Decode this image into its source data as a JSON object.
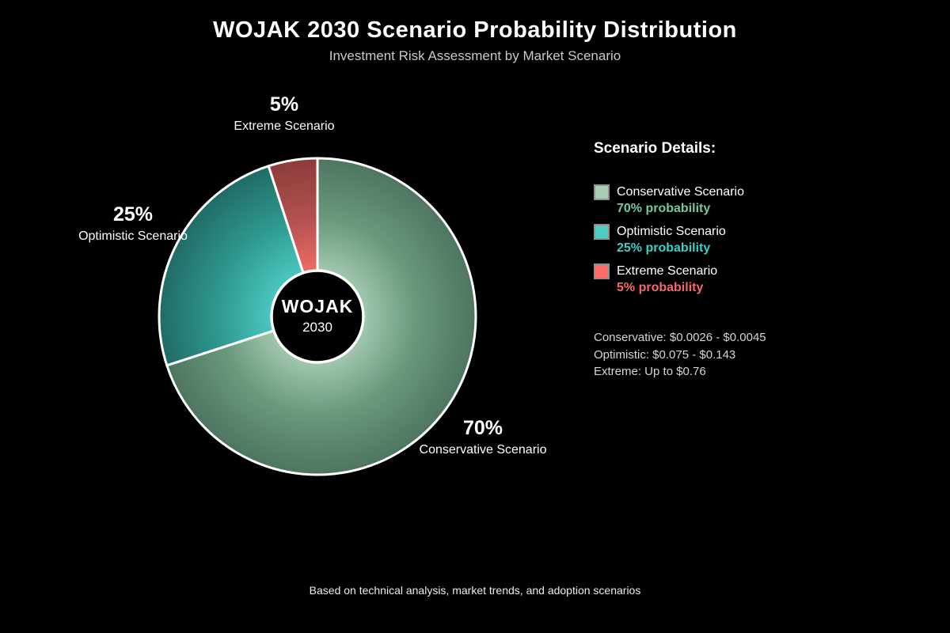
{
  "chart_data": {
    "type": "pie",
    "variant": "donut",
    "title": "WOJAK 2030 Scenario Probability Distribution",
    "subtitle": "Investment Risk Assessment by Market Scenario",
    "start_angle": "12-oclock",
    "direction": "clockwise",
    "categories": [
      "Conservative Scenario",
      "Optimistic Scenario",
      "Extreme Scenario"
    ],
    "values": [
      70,
      25,
      5
    ],
    "center_label": {
      "line1": "WOJAK",
      "line2": "2030"
    },
    "slices": [
      {
        "label": "Conservative Scenario",
        "value": 70,
        "pct_label": "70%",
        "swatch_color": "#a8cdb5",
        "text_color": "#76c7a0",
        "gradient": [
          "#a8cdb5",
          "#69997d",
          "#4e7560"
        ]
      },
      {
        "label": "Optimistic Scenario",
        "value": 25,
        "pct_label": "25%",
        "swatch_color": "#4ecdc4",
        "text_color": "#38cfc4",
        "gradient": [
          "#4ecdc4",
          "#2f9a91",
          "#216b65"
        ]
      },
      {
        "label": "Extreme Scenario",
        "value": 5,
        "pct_label": "5%",
        "swatch_color": "#ff6b6b",
        "text_color": "#f26b6b",
        "gradient": [
          "#f66e69",
          "#b25250",
          "#8c3c3a"
        ]
      }
    ],
    "stroke_color": "#ffffff",
    "background_color": "#000000"
  },
  "legend": {
    "heading": "Scenario Details:",
    "items": [
      {
        "label": "Conservative Scenario",
        "probability": "70% probability"
      },
      {
        "label": "Optimistic Scenario",
        "probability": "25% probability"
      },
      {
        "label": "Extreme Scenario",
        "probability": "5% probability"
      }
    ]
  },
  "price_targets": {
    "conservative": "Conservative: $0.0026 - $0.0045",
    "optimistic": "Optimistic: $0.075 - $0.143",
    "extreme": "Extreme: Up to $0.76"
  },
  "footer": {
    "note": "Based on technical analysis, market trends, and adoption scenarios"
  }
}
